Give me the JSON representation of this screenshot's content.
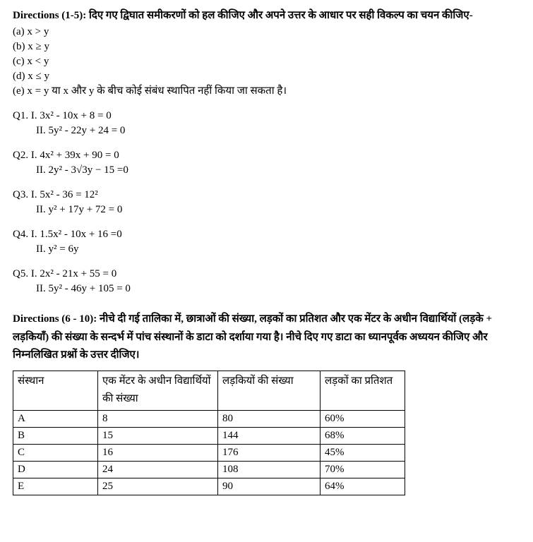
{
  "directions1": {
    "prefix": "Directions (1-5):",
    "text": " दिए गए द्विघात समीकरणों को हल कीजिए और अपने उत्तर के आधार पर सही विकल्प का चयन कीजिए-"
  },
  "options": {
    "a": "(a) x > y",
    "b": "(b) x ≥ y",
    "c": "(c) x < y",
    "d": "(d) x ≤ y",
    "e": "(e) x = y या  x और  y के बीच कोई संबंध स्थापित नहीं किया जा सकता है।"
  },
  "questions": [
    {
      "label": "Q1.",
      "eq1": "I. 3x² - 10x + 8 = 0",
      "eq2": "II. 5y² - 22y + 24 = 0"
    },
    {
      "label": "Q2.",
      "eq1": "I. 4x² + 39x + 90 = 0",
      "eq2": "II. 2y² - 3√3y − 15 =0"
    },
    {
      "label": "Q3.",
      "eq1": "I. 5x² - 36 = 12²",
      "eq2": "II. y² + 17y + 72 = 0"
    },
    {
      "label": "Q4.",
      "eq1": "I. 1.5x² - 10x + 16 =0",
      "eq2": "II. y² = 6y"
    },
    {
      "label": "Q5.",
      "eq1": "I. 2x² - 21x + 55 = 0",
      "eq2": "II. 5y² - 46y + 105 = 0"
    }
  ],
  "directions2": {
    "prefix": "Directions (6 - 10):",
    "text": " नीचे दी गई तालिका में, छात्राओं की संख्या, लड़कों का प्रतिशत और एक मेंटर के अधीन विद्यार्थियों (लड़के + लड़कियाँ) की संख्या के सन्दर्भ में पांच संस्थानों के डाटा को दर्शाया गया है। नीचे दिए गए डाटा का ध्यानपूर्वक अध्ययन कीजिए और निम्नलिखित प्रश्नों के उत्तर दीजिए।"
  },
  "table": {
    "headers": {
      "col1": "संस्थान",
      "col2": "एक मेंटर के अधीन विद्यार्थियों की संख्या",
      "col3": "लड़कियों की संख्या",
      "col4": "लड़कों का प्रतिशत"
    },
    "rows": [
      {
        "c1": "A",
        "c2": "8",
        "c3": "80",
        "c4": "60%"
      },
      {
        "c1": "B",
        "c2": "15",
        "c3": "144",
        "c4": "68%"
      },
      {
        "c1": "C",
        "c2": "16",
        "c3": "176",
        "c4": "45%"
      },
      {
        "c1": "D",
        "c2": "24",
        "c3": "108",
        "c4": "70%"
      },
      {
        "c1": "E",
        "c2": "25",
        "c3": "90",
        "c4": "64%"
      }
    ]
  }
}
